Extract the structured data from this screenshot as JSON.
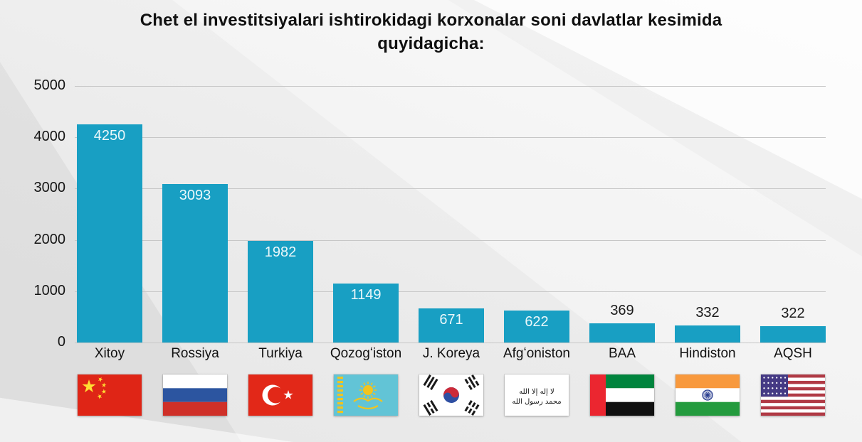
{
  "title": {
    "lines": [
      "Chet el investitsiyalari ishtirokidagi korxonalar soni davlatlar kesimida",
      "quyidagicha:"
    ]
  },
  "chart_data": {
    "type": "bar",
    "title": "Chet el investitsiyalari ishtirokidagi korxonalar soni davlatlar kesimida quyidagicha:",
    "categories": [
      "Xitoy",
      "Rossiya",
      "Turkiya",
      "Qozogʻiston",
      "J. Koreya",
      "Afgʻoniston",
      "BAA",
      "Hindiston",
      "AQSH"
    ],
    "values": [
      4250,
      3093,
      1982,
      1149,
      671,
      622,
      369,
      332,
      322
    ],
    "flags": [
      "china",
      "russia",
      "turkey",
      "kazakhstan",
      "south-korea",
      "afghanistan",
      "uae",
      "india",
      "usa"
    ],
    "xlabel": "",
    "ylabel": "",
    "ylim": [
      0,
      5000
    ],
    "yticks": [
      0,
      1000,
      2000,
      3000,
      4000,
      5000
    ],
    "grid": true,
    "legend": false,
    "bar_color": "#189FC3",
    "value_label_inside_color": "#EAF7FA",
    "value_label_outside_color": "#1B1B1B",
    "axis_text_color": "#151515",
    "gridline_color": "#C7C7C7"
  }
}
